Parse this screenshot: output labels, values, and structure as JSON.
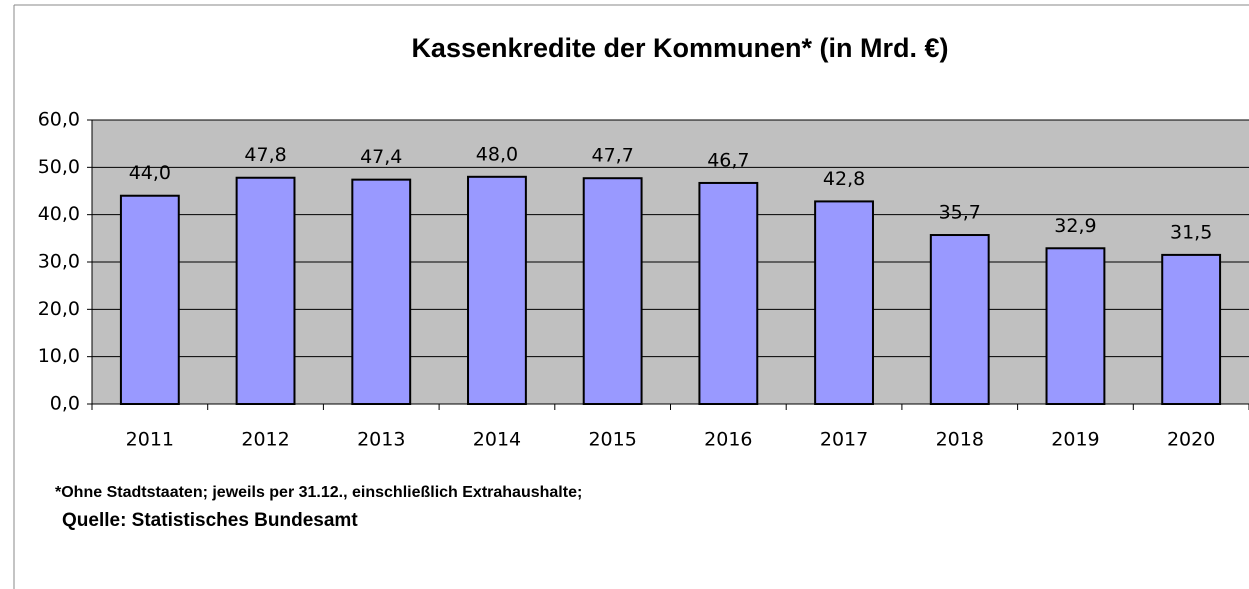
{
  "chart_data": {
    "type": "bar",
    "title": "Kassenkredite der Kommunen* (in Mrd. €)",
    "categories": [
      "2011",
      "2012",
      "2013",
      "2014",
      "2015",
      "2016",
      "2017",
      "2018",
      "2019",
      "2020"
    ],
    "values": [
      44.0,
      47.8,
      47.4,
      48.0,
      47.7,
      46.7,
      42.8,
      35.7,
      32.9,
      31.5
    ],
    "value_labels": [
      "44,0",
      "47,8",
      "47,4",
      "48,0",
      "47,7",
      "46,7",
      "42,8",
      "35,7",
      "32,9",
      "31,5"
    ],
    "color": "#9999ff",
    "ylim": [
      0,
      60
    ],
    "yticks": [
      {
        "value": 0,
        "label": "0,0"
      },
      {
        "value": 10,
        "label": "10,0"
      },
      {
        "value": 20,
        "label": "20,0"
      },
      {
        "value": 30,
        "label": "30,0"
      },
      {
        "value": 40,
        "label": "40,0"
      },
      {
        "value": 50,
        "label": "50,0"
      },
      {
        "value": 60,
        "label": "60,0"
      }
    ],
    "grid": true,
    "notes": [
      "*Ohne Stadtstaaten; jeweils per 31.12., einschließlich Extrahaushalte;",
      "Quelle: Statistisches Bundesamt"
    ]
  }
}
